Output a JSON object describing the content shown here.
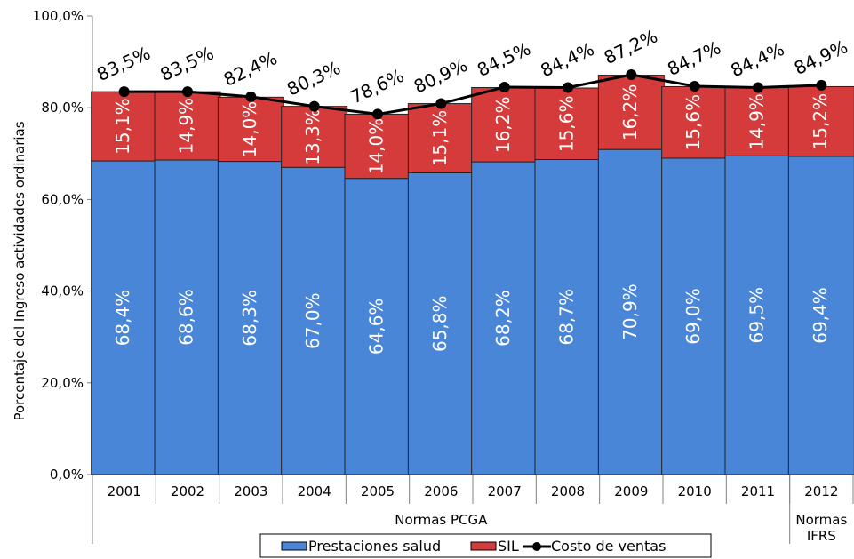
{
  "chart_data": {
    "type": "bar",
    "stacked": true,
    "categories": [
      "2001",
      "2002",
      "2003",
      "2004",
      "2005",
      "2006",
      "2007",
      "2008",
      "2009",
      "2010",
      "2011",
      "2012"
    ],
    "series": [
      {
        "name": "Prestaciones salud",
        "color": "#4a86d8",
        "values": [
          68.4,
          68.6,
          68.3,
          67.0,
          64.6,
          65.8,
          68.2,
          68.7,
          70.9,
          69.0,
          69.5,
          69.4
        ],
        "labels": [
          "68,4%",
          "68,6%",
          "68,3%",
          "67,0%",
          "64,6%",
          "65,8%",
          "68,2%",
          "68,7%",
          "70,9%",
          "69,0%",
          "69,5%",
          "69,4%"
        ]
      },
      {
        "name": "SIL",
        "color": "#d63b3b",
        "values": [
          15.1,
          14.9,
          14.0,
          13.3,
          14.0,
          15.1,
          16.2,
          15.6,
          16.2,
          15.6,
          14.9,
          15.2
        ],
        "labels": [
          "15,1%",
          "14,9%",
          "14,0%",
          "13,3%",
          "14,0%",
          "15,1%",
          "16,2%",
          "15,6%",
          "16,2%",
          "15,6%",
          "14,9%",
          "15,2%"
        ]
      },
      {
        "name": "Costo de ventas",
        "type": "line",
        "color": "#000000",
        "values": [
          83.5,
          83.5,
          82.4,
          80.3,
          78.6,
          80.9,
          84.5,
          84.4,
          87.2,
          84.7,
          84.4,
          84.9
        ],
        "labels": [
          "83,5%",
          "83,5%",
          "82,4%",
          "80,3%",
          "78,6%",
          "80,9%",
          "84,5%",
          "84,4%",
          "87,2%",
          "84,7%",
          "84,4%",
          "84,9%"
        ]
      }
    ],
    "ylabel": "Porcentaje del Ingreso actividades ordinarias",
    "ylim": [
      0,
      100
    ],
    "yticks": [
      "0,0%",
      "20,0%",
      "40,0%",
      "60,0%",
      "80,0%",
      "100,0%"
    ],
    "groups": [
      {
        "label": "Normas PCGA",
        "span": [
          0,
          10
        ]
      },
      {
        "label": "Normas IFRS",
        "lines": [
          "Normas",
          "IFRS"
        ],
        "span": [
          11,
          11
        ]
      }
    ],
    "legend_position": "bottom",
    "grid": false
  }
}
